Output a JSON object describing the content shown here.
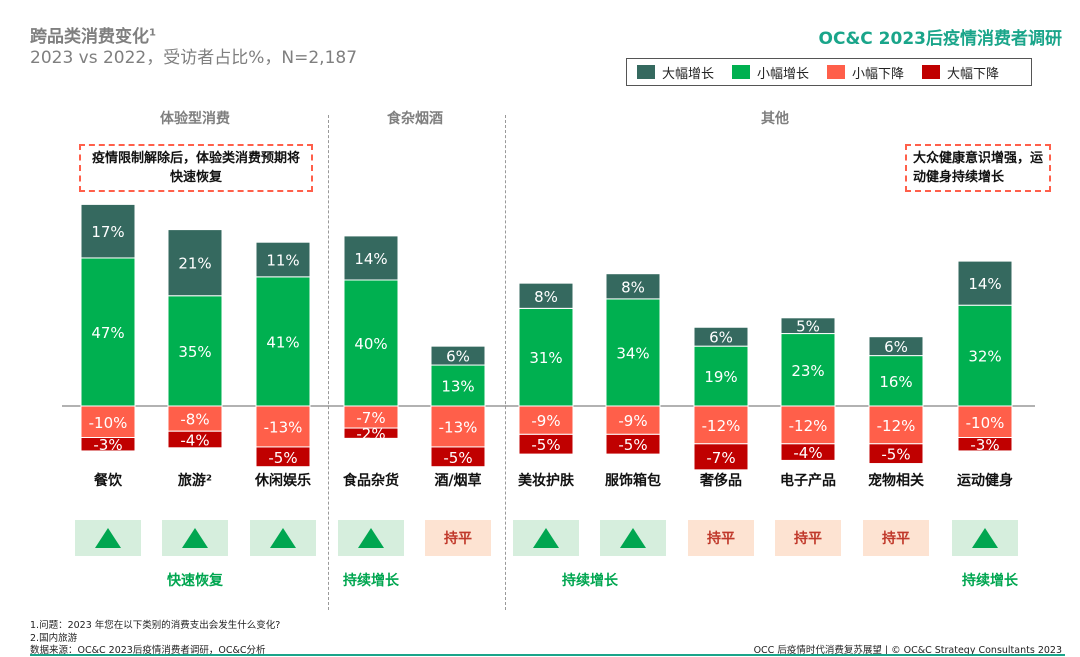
{
  "header": {
    "title": "跨品类消费变化",
    "title_sup": "1",
    "subtitle": "2023 vs 2022，受访者占比%，N=2,187",
    "brand": "OC&C 2023后疫情消费者调研"
  },
  "groups": [
    "体验型消费",
    "食杂烟酒",
    "其他"
  ],
  "notes": {
    "left": "疫情限制解除后，体验类消费预期将快速恢复",
    "right": "大众健康意识增强，运动健身持续增长"
  },
  "colors": {
    "big_up": "#35695f",
    "small_up": "#00b050",
    "small_down": "#ff5f4a",
    "big_down": "#c00000"
  },
  "chart_data": {
    "type": "bar",
    "stacked": true,
    "categories": [
      "餐饮",
      "旅游²",
      "休闲娱乐",
      "食品杂货",
      "酒/烟草",
      "美妆护肤",
      "服饰箱包",
      "奢侈品",
      "电子产品",
      "宠物相关",
      "运动健身"
    ],
    "series": [
      {
        "name": "大幅增长",
        "values": [
          17,
          21,
          11,
          14,
          6,
          8,
          8,
          6,
          5,
          6,
          14
        ]
      },
      {
        "name": "小幅增长",
        "values": [
          47,
          35,
          41,
          40,
          13,
          31,
          34,
          19,
          23,
          16,
          32
        ]
      },
      {
        "name": "小幅下降",
        "values": [
          -10,
          -8,
          -13,
          -7,
          -13,
          -9,
          -9,
          -12,
          -12,
          -12,
          -10
        ]
      },
      {
        "name": "大幅下降",
        "values": [
          -3,
          -4,
          -5,
          -2,
          -5,
          -5,
          -5,
          -7,
          -4,
          -5,
          -3
        ]
      }
    ],
    "ylabel": "受访者占比%",
    "legend": "top-right"
  },
  "indicators": [
    "up",
    "up",
    "up",
    "up",
    "持平",
    "up",
    "up",
    "持平",
    "持平",
    "持平",
    "up"
  ],
  "trends": [
    "快速恢复",
    "持续增长",
    "持续增长",
    "持续增长"
  ],
  "footnotes": [
    "1.问题：2023 年您在以下类别的消费支出会发生什么变化?",
    "2.国内旅游",
    "数据来源：OC&C 2023后疫情消费者调研，OC&C分析"
  ],
  "footer_right": "OCC 后疫情时代消费复苏展望 | © OC&C Strategy Consultants 2023"
}
